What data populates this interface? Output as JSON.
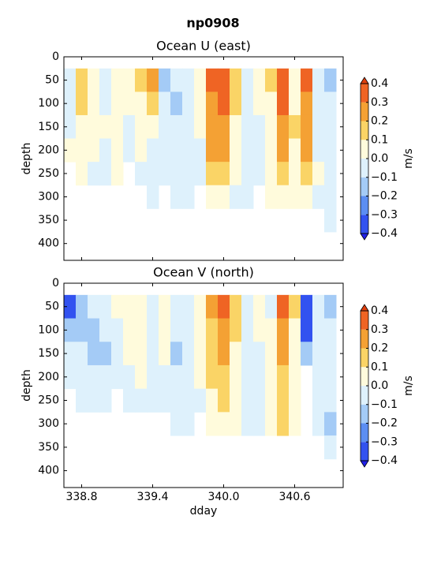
{
  "figure_title": "np0908",
  "chart_data": [
    {
      "type": "contourf",
      "title": "Ocean U (east)",
      "ylabel": "depth",
      "show_xticklabels": false,
      "x": [
        338.7,
        338.8,
        338.9,
        339.0,
        339.1,
        339.2,
        339.3,
        339.4,
        339.5,
        339.6,
        339.7,
        339.8,
        339.9,
        340.0,
        340.1,
        340.2,
        340.3,
        340.4,
        340.5,
        340.6,
        340.7,
        340.8,
        340.9
      ],
      "depths": [
        50,
        100,
        150,
        200,
        250,
        300,
        350
      ],
      "values": [
        [
          -0.05,
          -0.05,
          -0.05,
          0.05,
          null,
          null,
          null
        ],
        [
          0.15,
          0.15,
          0.05,
          0.05,
          0.05,
          null,
          null
        ],
        [
          0.05,
          0.05,
          0.05,
          0.05,
          -0.05,
          null,
          null
        ],
        [
          -0.05,
          -0.05,
          0.05,
          -0.05,
          -0.05,
          null,
          null
        ],
        [
          0.05,
          0.05,
          0.05,
          0.05,
          0.05,
          null,
          null
        ],
        [
          0.05,
          0.05,
          -0.05,
          -0.05,
          null,
          null,
          null
        ],
        [
          0.15,
          0.05,
          0.05,
          0.05,
          -0.05,
          null,
          null
        ],
        [
          0.25,
          0.15,
          0.05,
          -0.05,
          -0.05,
          -0.05,
          null
        ],
        [
          -0.15,
          -0.05,
          -0.05,
          -0.05,
          -0.05,
          null,
          null
        ],
        [
          -0.05,
          -0.15,
          -0.05,
          -0.05,
          -0.05,
          -0.05,
          null
        ],
        [
          -0.05,
          -0.05,
          -0.05,
          -0.05,
          -0.05,
          -0.05,
          null
        ],
        [
          0.05,
          0.05,
          0.05,
          -0.05,
          -0.05,
          null,
          null
        ],
        [
          0.35,
          0.25,
          0.25,
          0.25,
          0.15,
          0.05,
          null
        ],
        [
          0.35,
          0.35,
          0.25,
          0.25,
          0.15,
          0.05,
          null
        ],
        [
          0.15,
          0.15,
          0.05,
          0.05,
          0.05,
          -0.05,
          null
        ],
        [
          -0.05,
          -0.05,
          -0.05,
          -0.05,
          -0.05,
          -0.05,
          null
        ],
        [
          0.05,
          0.05,
          -0.05,
          -0.05,
          -0.05,
          null,
          null
        ],
        [
          0.15,
          0.05,
          0.05,
          0.05,
          0.05,
          0.05,
          null
        ],
        [
          0.35,
          0.35,
          0.25,
          0.25,
          0.15,
          0.05,
          null
        ],
        [
          0.05,
          0.05,
          0.15,
          0.05,
          0.05,
          0.05,
          null
        ],
        [
          0.35,
          0.25,
          0.25,
          0.25,
          0.15,
          0.05,
          null
        ],
        [
          -0.05,
          -0.05,
          -0.05,
          -0.05,
          0.05,
          -0.05,
          null
        ],
        [
          -0.15,
          -0.05,
          -0.05,
          -0.05,
          -0.05,
          -0.05,
          -0.05
        ]
      ],
      "xlim": [
        338.65,
        341.01
      ],
      "ylim": [
        0,
        436
      ],
      "y_inverted": true,
      "xticks": [
        338.8,
        339.4,
        340,
        340.6
      ],
      "yticks": [
        0,
        50,
        100,
        150,
        200,
        250,
        300,
        350,
        400
      ],
      "colorbar": {
        "label": "m/s",
        "levels": [
          {
            "value": -0.4,
            "label": "−0.4"
          },
          {
            "value": -0.3,
            "label": "−0.3"
          },
          {
            "value": -0.2,
            "label": "−0.2"
          },
          {
            "value": -0.1,
            "label": "−0.1"
          },
          {
            "value": 0,
            "label": "0.0"
          },
          0.1,
          0.2,
          0.3,
          0.4
        ],
        "colors": [
          "#3252f0",
          "#5c8ef2",
          "#a4cbf6",
          "#def1fc",
          "#fffbdc",
          "#fad466",
          "#f4a134",
          "#ef6424"
        ],
        "under_color": "#2020e8",
        "over_color": "#e0400e"
      }
    },
    {
      "type": "contourf",
      "title": "Ocean V (north)",
      "ylabel": "depth",
      "xlabel": "dday",
      "show_xticklabels": true,
      "x": [
        338.7,
        338.8,
        338.9,
        339.0,
        339.1,
        339.2,
        339.3,
        339.4,
        339.5,
        339.6,
        339.7,
        339.8,
        339.9,
        340.0,
        340.1,
        340.2,
        340.3,
        340.4,
        340.5,
        340.6,
        340.7,
        340.8,
        340.9
      ],
      "depths": [
        50,
        100,
        150,
        200,
        250,
        300,
        350
      ],
      "values": [
        [
          -0.35,
          -0.15,
          -0.05,
          -0.05,
          null,
          null,
          null
        ],
        [
          -0.15,
          -0.15,
          -0.05,
          -0.05,
          -0.05,
          null,
          null
        ],
        [
          -0.05,
          -0.15,
          -0.15,
          -0.05,
          -0.05,
          null,
          null
        ],
        [
          -0.05,
          -0.05,
          -0.15,
          -0.05,
          -0.05,
          null,
          null
        ],
        [
          0.05,
          -0.05,
          -0.05,
          -0.05,
          null,
          null,
          null
        ],
        [
          0.05,
          0.05,
          0.05,
          -0.05,
          -0.05,
          null,
          null
        ],
        [
          0.05,
          0.05,
          0.05,
          0.05,
          -0.05,
          null,
          null
        ],
        [
          -0.05,
          -0.05,
          -0.05,
          -0.05,
          -0.05,
          null,
          null
        ],
        [
          0.05,
          0.05,
          0.05,
          -0.05,
          -0.05,
          null,
          null
        ],
        [
          -0.05,
          -0.05,
          -0.15,
          -0.05,
          -0.05,
          -0.05,
          null
        ],
        [
          -0.05,
          -0.05,
          -0.05,
          -0.05,
          -0.05,
          -0.05,
          null
        ],
        [
          0.05,
          0.05,
          0.05,
          0.05,
          -0.05,
          null,
          null
        ],
        [
          0.25,
          0.15,
          0.15,
          0.15,
          0.05,
          0.05,
          null
        ],
        [
          0.35,
          0.25,
          0.25,
          0.15,
          0.15,
          0.05,
          null
        ],
        [
          0.15,
          0.15,
          0.05,
          0.05,
          0.05,
          0.05,
          null
        ],
        [
          -0.05,
          -0.05,
          -0.05,
          -0.05,
          -0.05,
          -0.05,
          null
        ],
        [
          0.05,
          0.05,
          -0.05,
          -0.05,
          -0.05,
          -0.05,
          null
        ],
        [
          -0.05,
          0.05,
          0.05,
          0.05,
          0.05,
          0.05,
          null
        ],
        [
          0.35,
          0.25,
          0.25,
          0.15,
          0.15,
          0.15,
          null
        ],
        [
          0.15,
          0.05,
          0.05,
          0.05,
          0.05,
          0.05,
          null
        ],
        [
          -0.35,
          -0.35,
          -0.15,
          null,
          null,
          null,
          null
        ],
        [
          -0.05,
          -0.05,
          -0.05,
          -0.05,
          -0.05,
          -0.05,
          null
        ],
        [
          -0.15,
          -0.05,
          -0.05,
          -0.05,
          -0.05,
          -0.15,
          -0.05
        ]
      ],
      "xlim": [
        338.65,
        341.01
      ],
      "ylim": [
        0,
        436
      ],
      "y_inverted": true,
      "xticks": [
        338.8,
        339.4,
        {
          "value": 340,
          "label": "340.0"
        },
        340.6
      ],
      "yticks": [
        0,
        50,
        100,
        150,
        200,
        250,
        300,
        350,
        400
      ],
      "colorbar": {
        "label": "m/s",
        "levels": [
          {
            "value": -0.4,
            "label": "−0.4"
          },
          {
            "value": -0.3,
            "label": "−0.3"
          },
          {
            "value": -0.2,
            "label": "−0.2"
          },
          {
            "value": -0.1,
            "label": "−0.1"
          },
          {
            "value": 0,
            "label": "0.0"
          },
          0.1,
          0.2,
          0.3,
          0.4
        ],
        "colors": [
          "#3252f0",
          "#5c8ef2",
          "#a4cbf6",
          "#def1fc",
          "#fffbdc",
          "#fad466",
          "#f4a134",
          "#ef6424"
        ],
        "under_color": "#2020e8",
        "over_color": "#e0400e"
      }
    }
  ]
}
